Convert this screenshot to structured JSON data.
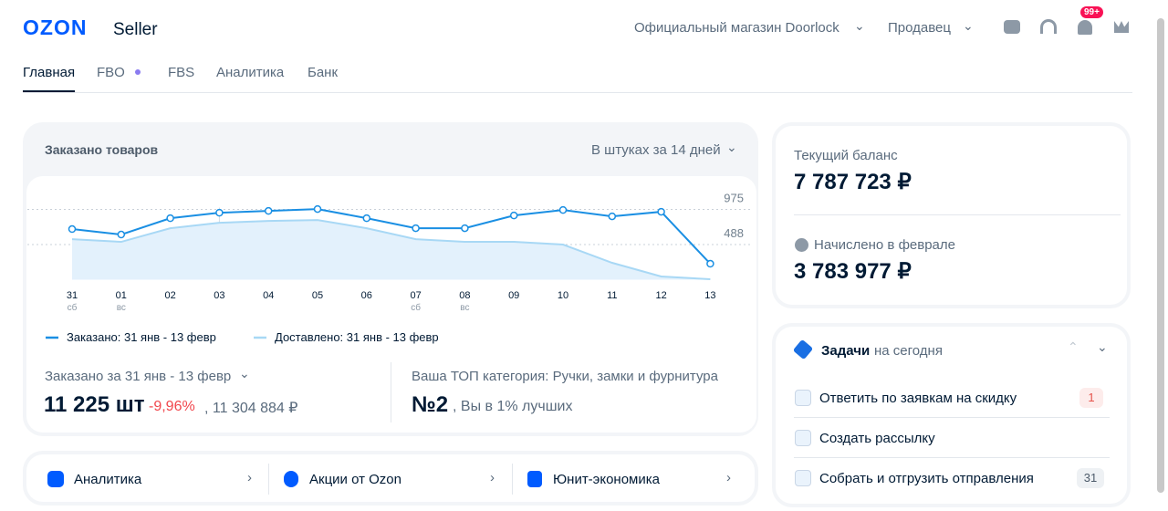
{
  "header": {
    "logo": "OZON",
    "logo_sub": "Seller",
    "store": "Официальный магазин Doorlock",
    "role": "Продавец",
    "badge": "99+"
  },
  "tabs": [
    "Главная",
    "FBO",
    "FBS",
    "Аналитика",
    "Банк"
  ],
  "orders_card": {
    "title": "Заказано товаров",
    "period": "В штуках за 14 дней",
    "chart": {
      "type": "line",
      "categories": [
        "31",
        "01",
        "02",
        "03",
        "04",
        "05",
        "06",
        "07",
        "08",
        "09",
        "10",
        "11",
        "12",
        "13"
      ],
      "sublabels": [
        "сб",
        "вс",
        null,
        null,
        null,
        null,
        null,
        "сб",
        "вс",
        null,
        null,
        null,
        null,
        null
      ],
      "series": [
        {
          "name": "Заказано: 31 янв - 13 февр",
          "color": "#1a8fe3",
          "values": [
            702,
            626,
            853,
            929,
            954,
            980,
            853,
            714,
            714,
            891,
            967,
            879,
            942,
            221
          ]
        },
        {
          "name": "Доставлено: 31 янв - 13 февр",
          "color": "#a8d8f5",
          "area": true,
          "values": [
            562,
            525,
            714,
            790,
            815,
            828,
            714,
            562,
            525,
            525,
            487,
            234,
            44,
            6
          ]
        }
      ],
      "ylim": [
        0,
        1380
      ],
      "yticks": [
        488,
        975
      ],
      "grid": true
    },
    "summary_label": "Заказано за 31 янв - 13 февр",
    "total": "11 225 шт",
    "change": "-9,96%",
    "revenue": ", 11 304 884 ₽",
    "top_category": "Ваша ТОП категория: Ручки, замки и фурнитура",
    "rank": "№2",
    "rank_note": ", Вы в 1% лучших"
  },
  "links": [
    "Аналитика",
    "Акции от Ozon",
    "Юнит-экономика"
  ],
  "balance": {
    "label": "Текущий баланс",
    "value": "7 787 723 ₽",
    "accrued_label": "Начислено в феврале",
    "accrued": "3 783 977 ₽"
  },
  "tasks": {
    "title": "Задачи",
    "subtitle": "на сегодня",
    "items": [
      {
        "label": "Ответить по заявкам на скидку",
        "count": 1
      },
      {
        "label": "Создать рассылку"
      },
      {
        "label": "Собрать и отгрузить отправления",
        "count": 31
      }
    ]
  }
}
